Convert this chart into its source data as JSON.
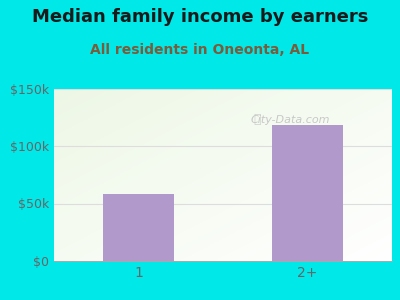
{
  "title": "Median family income by earners",
  "subtitle": "All residents in Oneonta, AL",
  "categories": [
    "1",
    "2+"
  ],
  "values": [
    58000,
    118000
  ],
  "bar_color": "#b299cc",
  "background_color": "#00e8e8",
  "ylim": [
    0,
    150000
  ],
  "yticks": [
    0,
    50000,
    100000,
    150000
  ],
  "ytick_labels": [
    "$0",
    "$50k",
    "$100k",
    "$150k"
  ],
  "title_color": "#1a1a1a",
  "subtitle_color": "#7a5c3a",
  "watermark": "City-Data.com",
  "watermark_color": "#c0c0c0",
  "title_fontsize": 13,
  "subtitle_fontsize": 10,
  "tick_label_fontsize": 9,
  "axis_label_color": "#666666",
  "gradient_colors": [
    "#e8f5e0",
    "#f8fff8"
  ],
  "grid_color": "#dddddd"
}
